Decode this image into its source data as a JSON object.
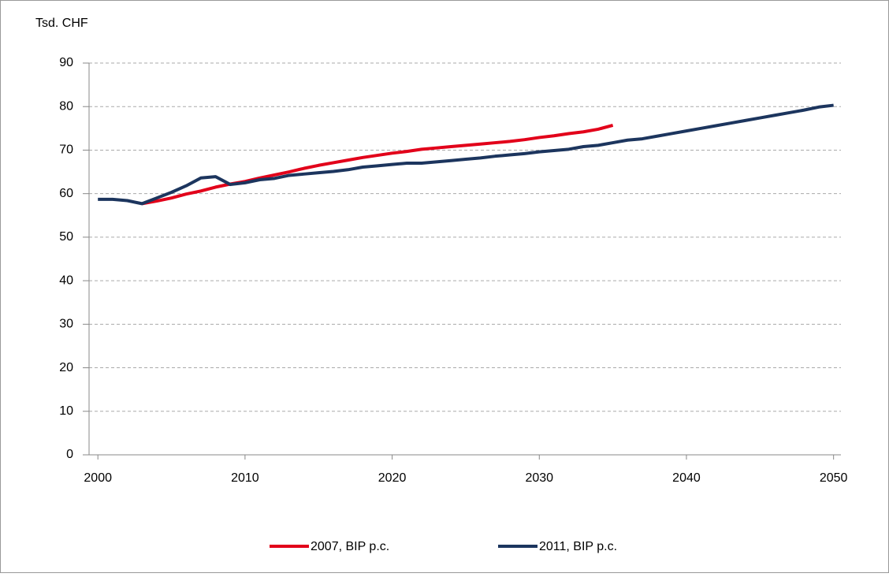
{
  "chart_data": {
    "type": "line",
    "y_label": "Tsd. CHF",
    "x": [
      2000,
      2001,
      2002,
      2003,
      2004,
      2005,
      2006,
      2007,
      2008,
      2009,
      2010,
      2011,
      2012,
      2013,
      2014,
      2015,
      2016,
      2017,
      2018,
      2019,
      2020,
      2021,
      2022,
      2023,
      2024,
      2025,
      2026,
      2027,
      2028,
      2029,
      2030,
      2031,
      2032,
      2033,
      2034,
      2035,
      2036,
      2037,
      2038,
      2039,
      2040,
      2041,
      2042,
      2043,
      2044,
      2045,
      2046,
      2047,
      2048,
      2049,
      2050
    ],
    "series": [
      {
        "name": "2007, BIP p.c.",
        "color": "#e2001a",
        "values": [
          null,
          null,
          null,
          57.7,
          58.3,
          59,
          59.9,
          60.6,
          61.5,
          62.2,
          62.8,
          63.6,
          64.3,
          65,
          65.8,
          66.5,
          67.1,
          67.7,
          68.3,
          68.8,
          69.3,
          69.7,
          70.2,
          70.5,
          70.8,
          71.1,
          71.4,
          71.7,
          72,
          72.4,
          72.9,
          73.3,
          73.8,
          74.2,
          74.8,
          75.7,
          null,
          null,
          null,
          null,
          null,
          null,
          null,
          null,
          null,
          null,
          null,
          null,
          null,
          null,
          null
        ]
      },
      {
        "name": "2011, BIP p.c.",
        "color": "#1c355e",
        "values": [
          58.7,
          58.7,
          58.4,
          57.7,
          59,
          60.3,
          61.8,
          63.6,
          63.9,
          62.1,
          62.5,
          63.2,
          63.5,
          64.2,
          64.5,
          64.8,
          65.1,
          65.5,
          66.1,
          66.4,
          66.7,
          67,
          67,
          67.3,
          67.6,
          67.9,
          68.2,
          68.6,
          68.9,
          69.2,
          69.6,
          69.9,
          70.2,
          70.8,
          71.1,
          71.7,
          72.3,
          72.6,
          73.2,
          73.8,
          74.4,
          75,
          75.6,
          76.2,
          76.8,
          77.4,
          78,
          78.6,
          79.2,
          79.9,
          80.3
        ]
      }
    ],
    "xlim": [
      1999.4,
      2050.5
    ],
    "xticks": [
      2000,
      2010,
      2020,
      2030,
      2040,
      2050
    ],
    "ylim": [
      0,
      90
    ],
    "yticks": [
      0,
      10,
      20,
      30,
      40,
      50,
      60,
      70,
      80,
      90
    ],
    "grid": true,
    "legend": "bottom"
  }
}
